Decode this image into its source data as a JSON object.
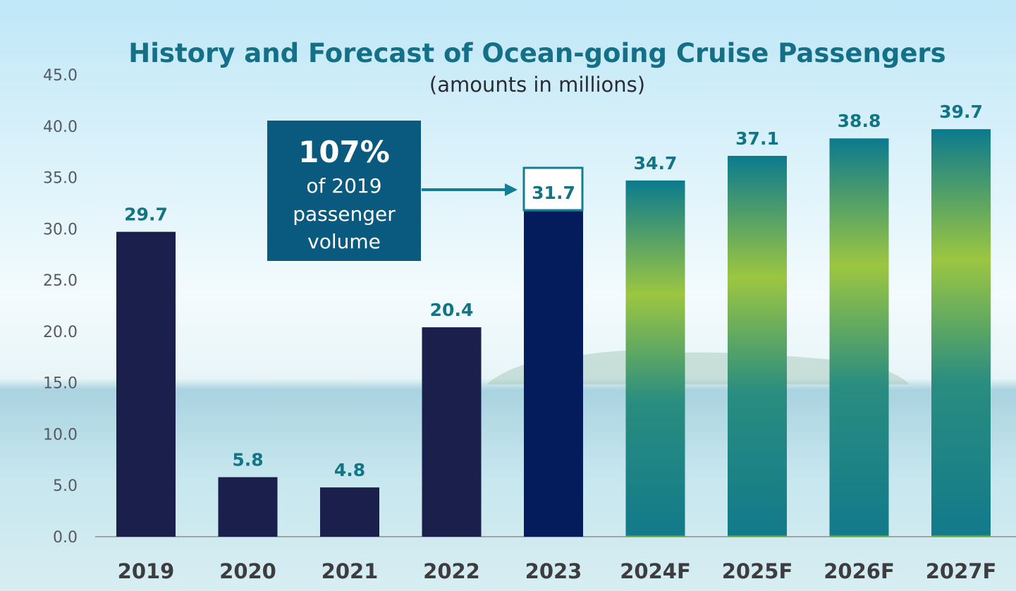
{
  "chart_data": {
    "type": "bar",
    "title": "History and Forecast of Ocean-going Cruise Passengers",
    "subtitle": "(amounts in millions)",
    "categories": [
      "2019",
      "2020",
      "2021",
      "2022",
      "2023",
      "2024F",
      "2025F",
      "2026F",
      "2027F"
    ],
    "values": [
      29.7,
      5.8,
      4.8,
      20.4,
      31.7,
      34.7,
      37.1,
      38.8,
      39.7
    ],
    "data_labels": [
      "29.7",
      "5.8",
      "4.8",
      "20.4",
      "31.7",
      "34.7",
      "37.1",
      "38.8",
      "39.7"
    ],
    "forecast": [
      false,
      false,
      false,
      false,
      false,
      true,
      true,
      true,
      true
    ],
    "ylim": [
      0,
      45
    ],
    "yticks": [
      "0.0",
      "5.0",
      "10.0",
      "15.0",
      "20.0",
      "25.0",
      "30.0",
      "35.0",
      "40.0",
      "45.0"
    ],
    "xlabel": "",
    "ylabel": "",
    "grid": false,
    "legend": "none",
    "colors": {
      "history_bar": "#1b1f4b",
      "highlight_bar": "#041c5c",
      "forecast_gradient": [
        "#0b7a8e",
        "#9cc641",
        "#2a8d80",
        "#127a8a",
        "#7ab83a"
      ],
      "label_color": "#127585",
      "title_color": "#137087"
    },
    "callout": {
      "big_text": "107%",
      "lines": [
        "of 2019",
        "passenger",
        "volume"
      ],
      "target_category": "2023",
      "bg_color": "#0a5a80"
    }
  }
}
